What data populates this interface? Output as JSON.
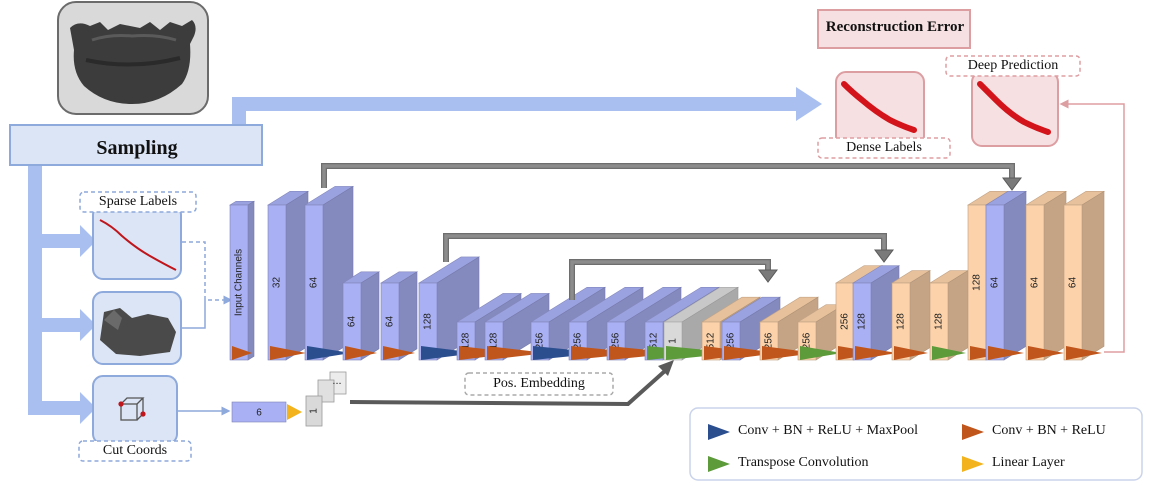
{
  "sampling": {
    "label": "Sampling"
  },
  "reconstruction_error": {
    "label": "Reconstruction Error"
  },
  "dense_labels": {
    "label": "Dense Labels"
  },
  "deep_prediction": {
    "label": "Deep Prediction"
  },
  "sparse_labels": {
    "label": "Sparse Labels"
  },
  "cut_coords": {
    "label": "Cut Coords"
  },
  "pos_embedding": {
    "label": "Pos. Embedding"
  },
  "input_channels": {
    "label": "Input Channels"
  },
  "encoder_blocks": [
    "32",
    "64",
    "64",
    "64",
    "128",
    "128",
    "128",
    "256",
    "256",
    "256",
    "512"
  ],
  "bottleneck": {
    "label": "1"
  },
  "decoder_blocks": [
    "512",
    "256",
    "256",
    "256",
    "256",
    "128",
    "128",
    "128",
    "128",
    "64",
    "64",
    "64"
  ],
  "coord_branch": {
    "linear_label": "6",
    "vector_label": "1",
    "ellipsis": "..."
  },
  "legend": {
    "items": [
      {
        "label": "Conv + BN + ReLU + MaxPool",
        "color": "#2b4e8f"
      },
      {
        "label": "Conv + BN + ReLU",
        "color": "#c0561b"
      },
      {
        "label": "Transpose Convolution",
        "color": "#5c9a3a"
      },
      {
        "label": "Linear Layer",
        "color": "#f2b31d"
      }
    ]
  },
  "colors": {
    "encoder": "#a9b0f3",
    "decoder": "#fbd2aa",
    "panel_blue": "#dbe5f5",
    "panel_border_blue": "#8ea9dc",
    "panel_pink": "#f6e0e2",
    "panel_border_pink": "#dd9ea2",
    "skip_arrow": "#8c8c8c",
    "flow_arrow": "#a9bff0"
  }
}
